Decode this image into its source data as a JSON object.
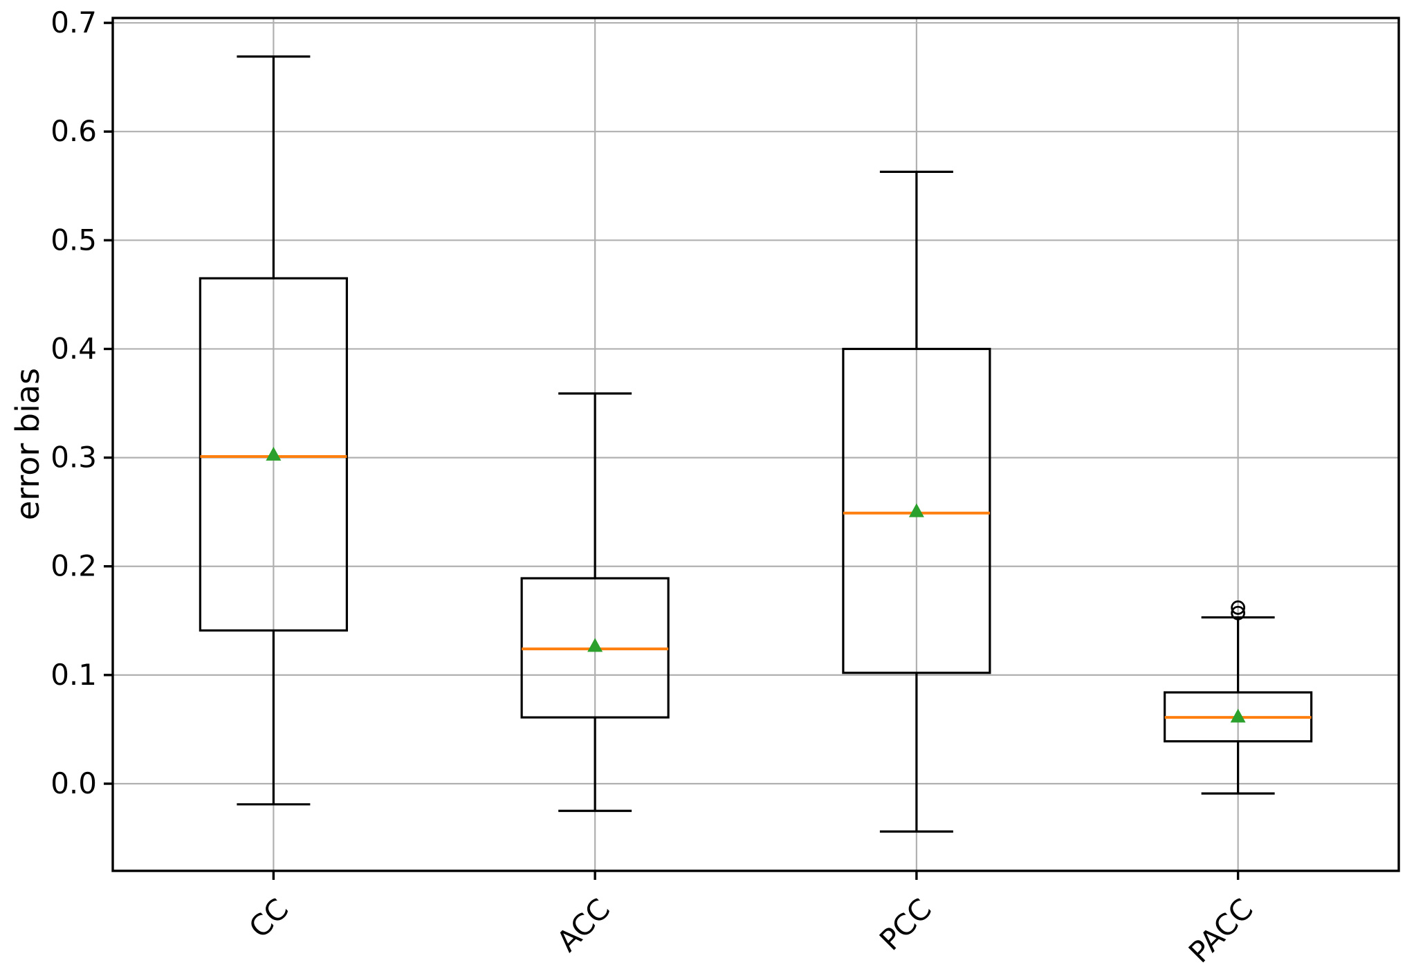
{
  "chart_data": {
    "type": "box",
    "title": "",
    "xlabel": "",
    "ylabel": "error bias",
    "categories": [
      "CC",
      "ACC",
      "PCC",
      "PACC"
    ],
    "yticks": [
      0.0,
      0.1,
      0.2,
      0.3,
      0.4,
      0.5,
      0.6,
      0.7
    ],
    "ytick_labels": [
      "0.0",
      "0.1",
      "0.2",
      "0.3",
      "0.4",
      "0.5",
      "0.6",
      "0.7"
    ],
    "ylim": [
      -0.0802,
      0.7045
    ],
    "grid": true,
    "legend": "none",
    "series": [
      {
        "label": "CC",
        "whislo": -0.019,
        "q1": 0.141,
        "med": 0.301,
        "q3": 0.465,
        "whishi": 0.669,
        "mean": 0.303,
        "fliers": []
      },
      {
        "label": "ACC",
        "whislo": -0.025,
        "q1": 0.061,
        "med": 0.124,
        "q3": 0.189,
        "whishi": 0.359,
        "mean": 0.127,
        "fliers": []
      },
      {
        "label": "PCC",
        "whislo": -0.044,
        "q1": 0.102,
        "med": 0.249,
        "q3": 0.4,
        "whishi": 0.563,
        "mean": 0.251,
        "fliers": []
      },
      {
        "label": "PACC",
        "whislo": -0.009,
        "q1": 0.039,
        "med": 0.061,
        "q3": 0.084,
        "whishi": 0.153,
        "mean": 0.062,
        "fliers": [
          0.157,
          0.162
        ]
      }
    ],
    "colors": {
      "box": "#000000",
      "whisker": "#000000",
      "median": "#ff7f0e",
      "mean_marker": "#2ca02c",
      "flier": "#000000",
      "grid": "#b0b0b0",
      "spine": "#000000",
      "text": "#000000",
      "background": "#ffffff"
    }
  }
}
